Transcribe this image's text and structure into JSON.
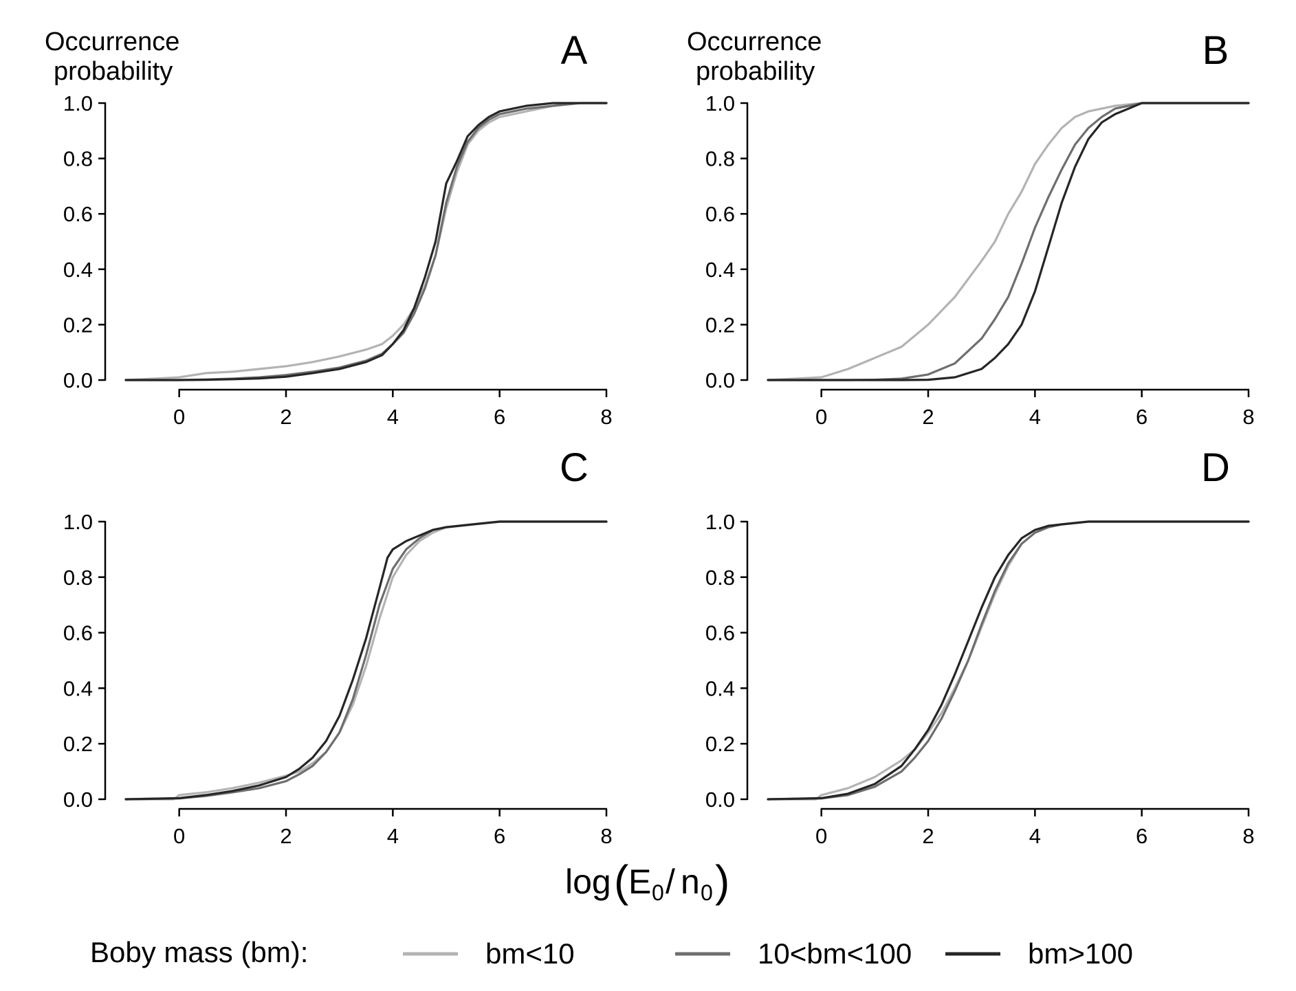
{
  "colors": {
    "bm_lt_10": "#b3b3b3",
    "bm_10_100": "#6e6e6e",
    "bm_gt_100": "#262626",
    "axis": "#000000"
  },
  "figure": {
    "y_title_line1": "Occurrence",
    "y_title_line2": "probability",
    "x_title_main": "log",
    "x_title_E": "E",
    "x_title_sub0_a": "0",
    "x_title_slash": "/",
    "x_title_n": "n",
    "x_title_sub0_b": "0",
    "legend_title": "Boby mass (bm):"
  },
  "chart_data": [
    {
      "type": "line",
      "panel": "A",
      "x_range": [
        -1,
        8
      ],
      "ylim": [
        0,
        1
      ],
      "x_ticks": [
        0,
        2,
        4,
        6,
        8
      ],
      "y_ticks": [
        0.0,
        0.2,
        0.4,
        0.6,
        0.8,
        1.0
      ],
      "y_tick_labels": [
        "0.0",
        "0.2",
        "0.4",
        "0.6",
        "0.8",
        "1.0"
      ],
      "series": [
        {
          "name": "bm<10",
          "x": [
            -1,
            0,
            0.5,
            1,
            1.5,
            2,
            2.5,
            3,
            3.5,
            3.8,
            4,
            4.2,
            4.4,
            4.6,
            4.8,
            5,
            5.2,
            5.4,
            5.6,
            5.8,
            6,
            6.5,
            7,
            7.5,
            8
          ],
          "y": [
            0,
            0.01,
            0.025,
            0.03,
            0.04,
            0.05,
            0.065,
            0.085,
            0.11,
            0.13,
            0.16,
            0.2,
            0.26,
            0.34,
            0.45,
            0.62,
            0.75,
            0.85,
            0.9,
            0.93,
            0.95,
            0.97,
            0.99,
            1.0,
            1.0
          ]
        },
        {
          "name": "10<bm<100",
          "x": [
            -1,
            0,
            0.5,
            1,
            1.5,
            2,
            2.5,
            3,
            3.5,
            3.8,
            4,
            4.2,
            4.4,
            4.6,
            4.8,
            5,
            5.2,
            5.4,
            5.6,
            5.8,
            6,
            6.5,
            7,
            7.5,
            8
          ],
          "y": [
            0,
            0,
            0.002,
            0.005,
            0.01,
            0.018,
            0.03,
            0.045,
            0.07,
            0.095,
            0.13,
            0.17,
            0.24,
            0.33,
            0.45,
            0.64,
            0.77,
            0.86,
            0.91,
            0.94,
            0.96,
            0.98,
            0.99,
            1.0,
            1.0
          ]
        },
        {
          "name": "bm>100",
          "x": [
            -1,
            0,
            0.5,
            1,
            1.5,
            2,
            2.5,
            3,
            3.5,
            3.8,
            4,
            4.2,
            4.4,
            4.6,
            4.8,
            5,
            5.2,
            5.4,
            5.6,
            5.8,
            6,
            6.5,
            7,
            7.5,
            8
          ],
          "y": [
            0,
            0,
            0.001,
            0.003,
            0.006,
            0.012,
            0.025,
            0.04,
            0.065,
            0.09,
            0.13,
            0.18,
            0.26,
            0.37,
            0.5,
            0.71,
            0.79,
            0.88,
            0.92,
            0.95,
            0.97,
            0.99,
            1.0,
            1.0,
            1.0
          ]
        }
      ]
    },
    {
      "type": "line",
      "panel": "B",
      "x_range": [
        -1,
        8
      ],
      "ylim": [
        0,
        1
      ],
      "x_ticks": [
        0,
        2,
        4,
        6,
        8
      ],
      "y_ticks": [
        0.0,
        0.2,
        0.4,
        0.6,
        0.8,
        1.0
      ],
      "y_tick_labels": [
        "0.0",
        "0.2",
        "0.4",
        "0.6",
        "0.8",
        "1.0"
      ],
      "series": [
        {
          "name": "bm<10",
          "x": [
            -1,
            0,
            0.5,
            1,
            1.5,
            2,
            2.5,
            3,
            3.25,
            3.5,
            3.75,
            4,
            4.25,
            4.5,
            4.75,
            5,
            5.5,
            6,
            7,
            8
          ],
          "y": [
            0,
            0.01,
            0.04,
            0.08,
            0.12,
            0.2,
            0.3,
            0.43,
            0.5,
            0.6,
            0.68,
            0.78,
            0.85,
            0.91,
            0.95,
            0.97,
            0.99,
            1.0,
            1.0,
            1.0
          ]
        },
        {
          "name": "10<bm<100",
          "x": [
            -1,
            0,
            0.5,
            1,
            1.5,
            2,
            2.5,
            3,
            3.25,
            3.5,
            3.75,
            4,
            4.25,
            4.5,
            4.75,
            5,
            5.25,
            5.5,
            6,
            7,
            8
          ],
          "y": [
            0,
            0,
            0,
            0.001,
            0.005,
            0.02,
            0.06,
            0.15,
            0.22,
            0.3,
            0.42,
            0.55,
            0.66,
            0.76,
            0.85,
            0.91,
            0.95,
            0.98,
            1.0,
            1.0,
            1.0
          ]
        },
        {
          "name": "bm>100",
          "x": [
            -1,
            0,
            1,
            1.5,
            2,
            2.5,
            3,
            3.25,
            3.5,
            3.75,
            4,
            4.25,
            4.5,
            4.75,
            5,
            5.25,
            5.5,
            5.75,
            6,
            7,
            8
          ],
          "y": [
            0,
            0,
            0,
            0,
            0.001,
            0.01,
            0.04,
            0.08,
            0.13,
            0.2,
            0.32,
            0.48,
            0.64,
            0.77,
            0.87,
            0.93,
            0.96,
            0.98,
            1.0,
            1.0,
            1.0
          ]
        }
      ]
    },
    {
      "type": "line",
      "panel": "C",
      "x_range": [
        -1,
        8
      ],
      "ylim": [
        0,
        1
      ],
      "x_ticks": [
        0,
        2,
        4,
        6,
        8
      ],
      "y_ticks": [
        0.0,
        0.2,
        0.4,
        0.6,
        0.8,
        1.0
      ],
      "y_tick_labels": [
        "0.0",
        "0.2",
        "0.4",
        "0.6",
        "0.8",
        "1.0"
      ],
      "series": [
        {
          "name": "bm<10",
          "x": [
            -1,
            -0.1,
            0,
            0.5,
            1,
            1.5,
            2,
            2.25,
            2.5,
            2.75,
            3,
            3.25,
            3.5,
            3.75,
            4,
            4.25,
            4.5,
            4.75,
            5,
            5.5,
            6,
            7,
            8
          ],
          "y": [
            0,
            0,
            0.015,
            0.025,
            0.04,
            0.06,
            0.085,
            0.1,
            0.13,
            0.17,
            0.24,
            0.34,
            0.48,
            0.65,
            0.8,
            0.88,
            0.93,
            0.96,
            0.98,
            0.99,
            1.0,
            1.0,
            1.0
          ]
        },
        {
          "name": "10<bm<100",
          "x": [
            -1,
            0,
            0.5,
            1,
            1.5,
            2,
            2.25,
            2.5,
            2.75,
            3,
            3.25,
            3.5,
            3.75,
            4,
            4.25,
            4.5,
            4.75,
            5,
            5.5,
            6,
            7,
            8
          ],
          "y": [
            0,
            0.003,
            0.012,
            0.025,
            0.04,
            0.065,
            0.09,
            0.12,
            0.17,
            0.24,
            0.36,
            0.52,
            0.7,
            0.83,
            0.9,
            0.94,
            0.97,
            0.98,
            0.99,
            1.0,
            1.0,
            1.0
          ]
        },
        {
          "name": "bm>100",
          "x": [
            -1,
            0,
            0.5,
            1,
            1.5,
            2,
            2.25,
            2.5,
            2.75,
            3,
            3.25,
            3.5,
            3.75,
            3.9,
            4,
            4.25,
            4.5,
            4.75,
            5,
            5.5,
            6,
            7,
            8
          ],
          "y": [
            0,
            0.004,
            0.015,
            0.03,
            0.05,
            0.08,
            0.11,
            0.15,
            0.21,
            0.3,
            0.43,
            0.58,
            0.76,
            0.87,
            0.9,
            0.93,
            0.95,
            0.97,
            0.98,
            0.99,
            1.0,
            1.0,
            1.0
          ]
        }
      ]
    },
    {
      "type": "line",
      "panel": "D",
      "x_range": [
        -1,
        8
      ],
      "ylim": [
        0,
        1
      ],
      "x_ticks": [
        0,
        2,
        4,
        6,
        8
      ],
      "y_ticks": [
        0.0,
        0.2,
        0.4,
        0.6,
        0.8,
        1.0
      ],
      "y_tick_labels": [
        "0.0",
        "0.2",
        "0.4",
        "0.6",
        "0.8",
        "1.0"
      ],
      "series": [
        {
          "name": "bm<10",
          "x": [
            -1,
            -0.1,
            0,
            0.5,
            1,
            1.5,
            1.75,
            2,
            2.25,
            2.5,
            2.75,
            3,
            3.25,
            3.5,
            3.75,
            4,
            4.25,
            4.5,
            5,
            6,
            7,
            8
          ],
          "y": [
            0,
            0,
            0.015,
            0.04,
            0.08,
            0.14,
            0.18,
            0.24,
            0.31,
            0.4,
            0.5,
            0.62,
            0.74,
            0.84,
            0.92,
            0.96,
            0.98,
            0.99,
            1.0,
            1.0,
            1.0,
            1.0
          ]
        },
        {
          "name": "10<bm<100",
          "x": [
            -1,
            0,
            0.5,
            1,
            1.5,
            1.75,
            2,
            2.25,
            2.5,
            2.75,
            3,
            3.25,
            3.5,
            3.75,
            4,
            4.25,
            4.5,
            5,
            6,
            7,
            8
          ],
          "y": [
            0,
            0.003,
            0.015,
            0.045,
            0.1,
            0.15,
            0.21,
            0.29,
            0.39,
            0.5,
            0.63,
            0.75,
            0.85,
            0.92,
            0.96,
            0.98,
            0.99,
            1.0,
            1.0,
            1.0,
            1.0
          ]
        },
        {
          "name": "bm>100",
          "x": [
            -1,
            0,
            0.5,
            1,
            1.5,
            1.75,
            2,
            2.25,
            2.5,
            2.75,
            3,
            3.25,
            3.5,
            3.75,
            4,
            4.25,
            4.5,
            5,
            6,
            7,
            8
          ],
          "y": [
            0,
            0.004,
            0.02,
            0.055,
            0.12,
            0.18,
            0.25,
            0.34,
            0.45,
            0.57,
            0.69,
            0.8,
            0.88,
            0.94,
            0.97,
            0.985,
            0.99,
            1.0,
            1.0,
            1.0,
            1.0
          ]
        }
      ]
    }
  ]
}
